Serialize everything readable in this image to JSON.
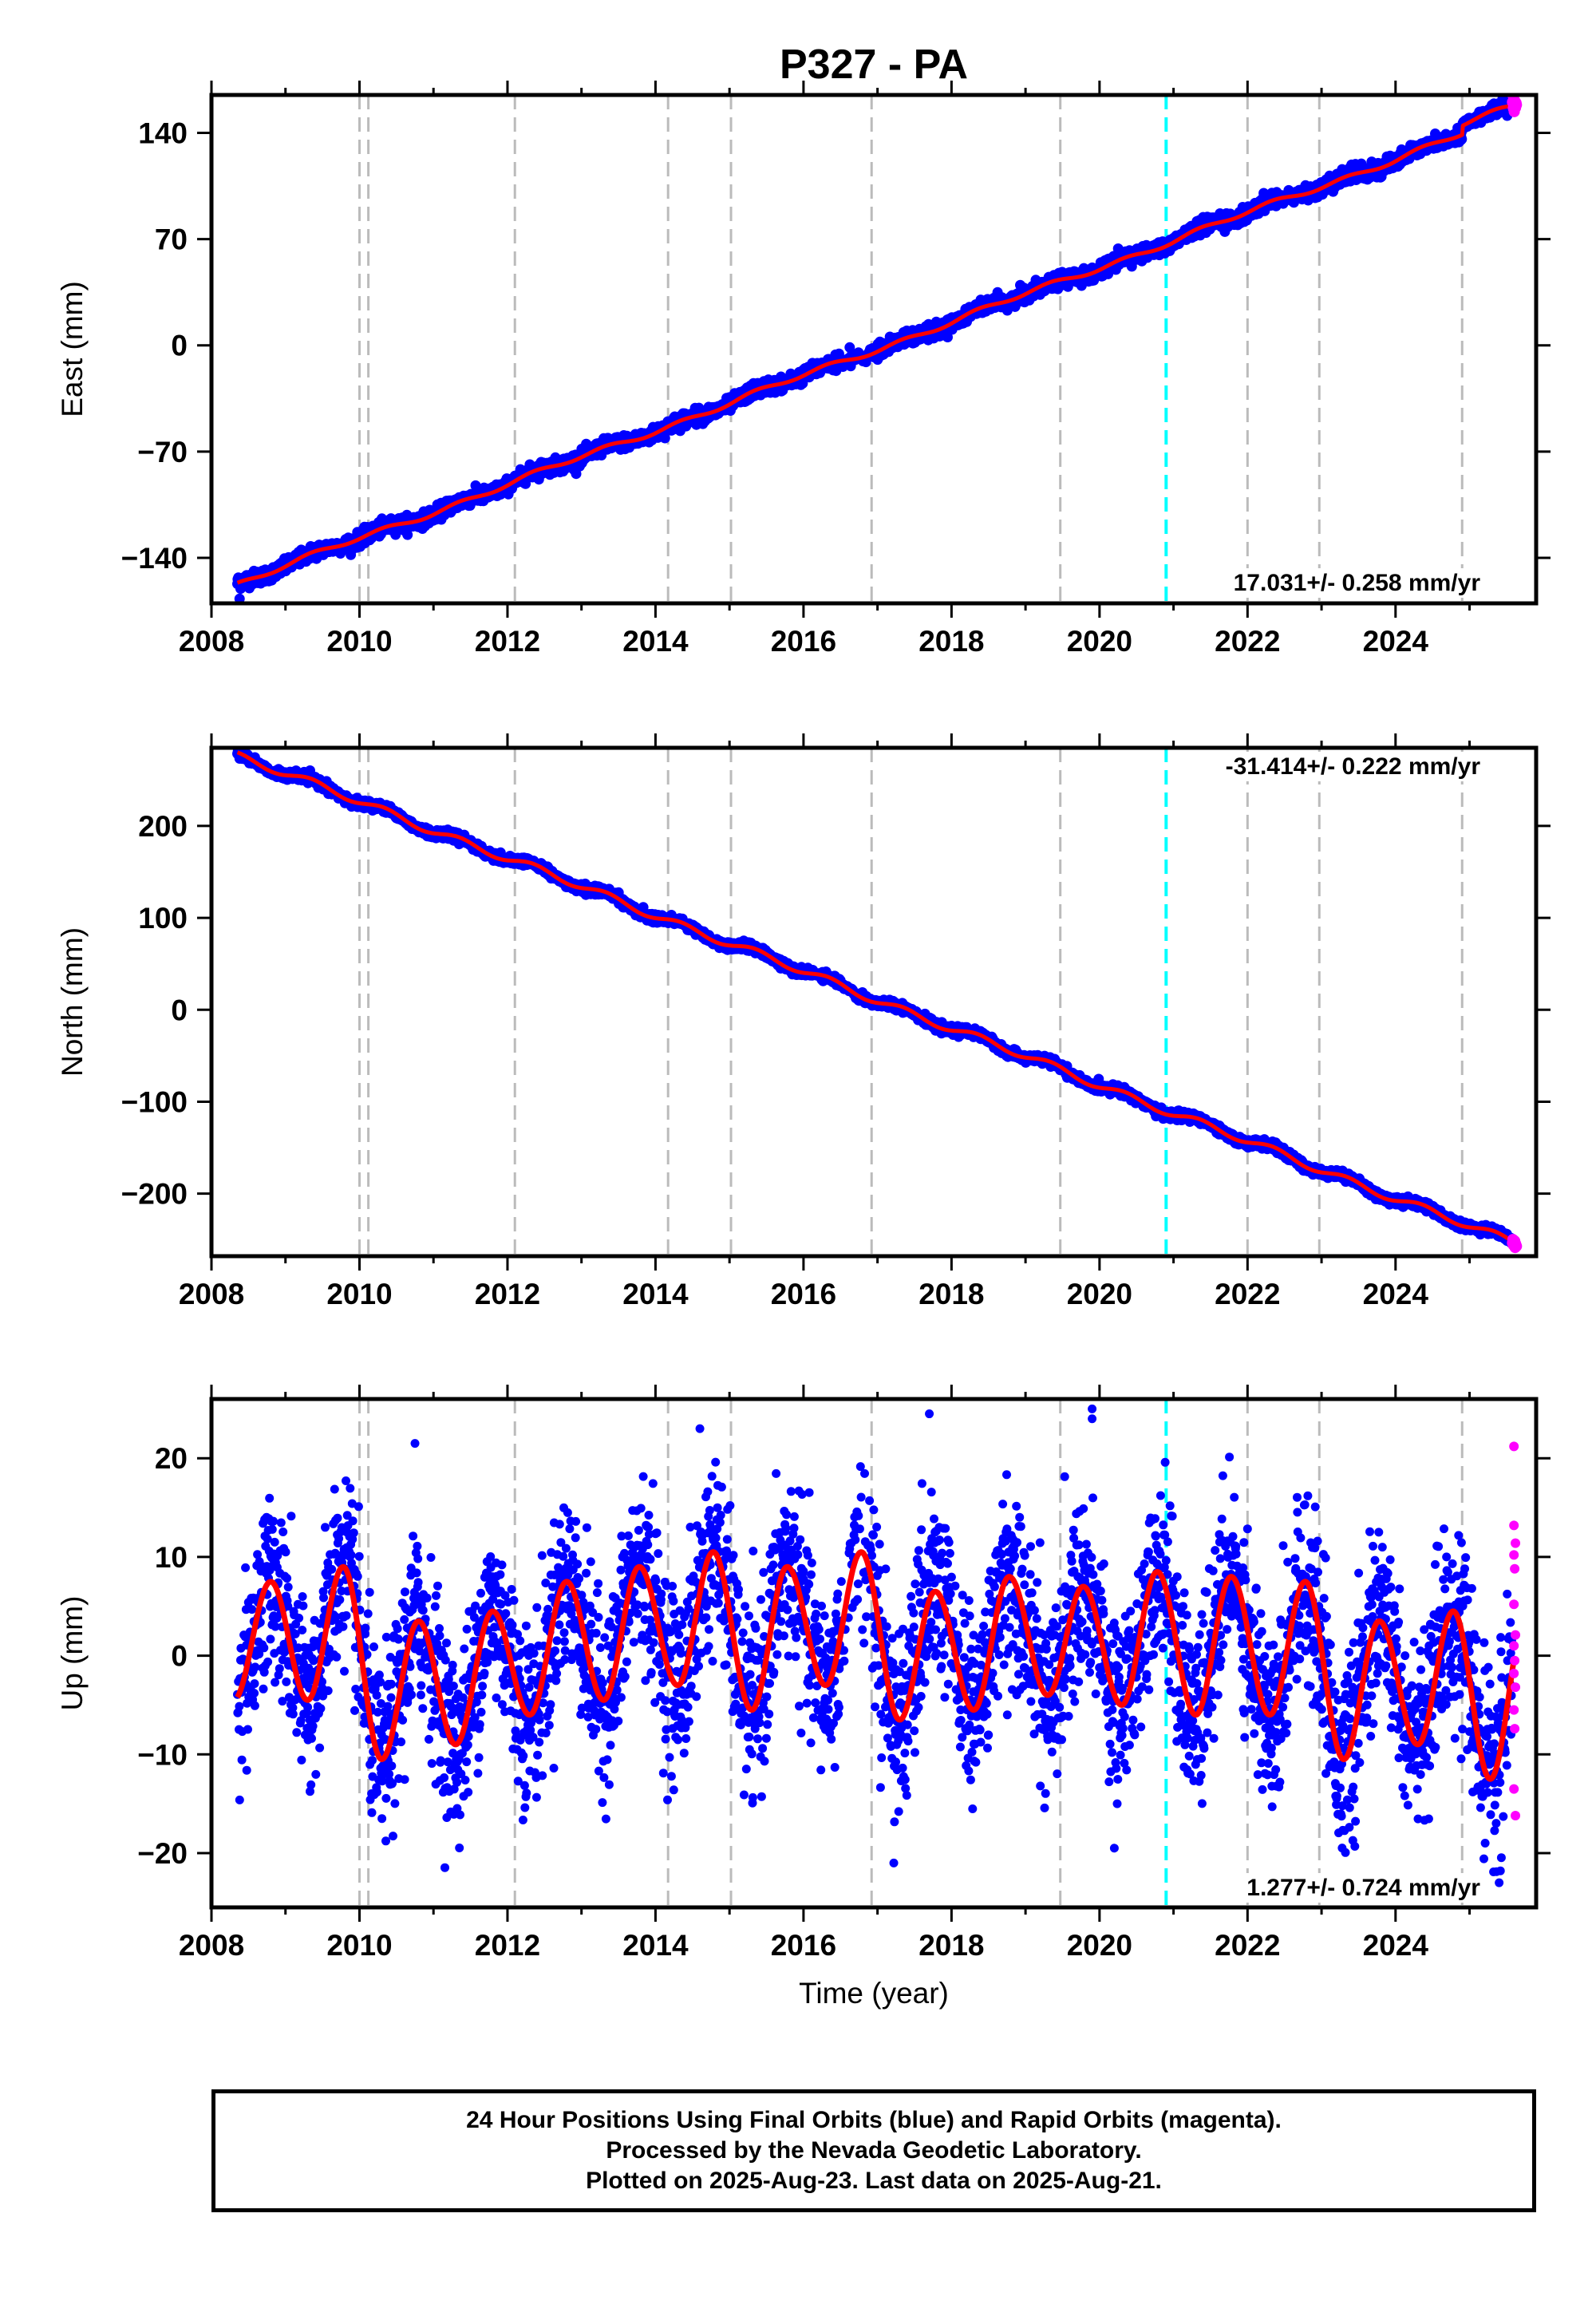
{
  "title": "P327 - PA",
  "colors": {
    "final_points": "#0000ff",
    "rapid_points": "#ff00ff",
    "model_line": "#ff0000",
    "equipment_change_lines": "#bbbbbb",
    "highlight_line": "#00ffff"
  },
  "chart_data": [
    {
      "type": "scatter",
      "panel": "east",
      "ylabel": "East (mm)",
      "xlim": [
        2008.0,
        2025.9
      ],
      "ylim": [
        -170,
        165
      ],
      "yticks": [
        -140,
        -70,
        0,
        70,
        140
      ],
      "xticks": [
        2008,
        2010,
        2012,
        2014,
        2016,
        2018,
        2020,
        2022,
        2024
      ],
      "rate_text": "17.031+/- 0.258 mm/yr",
      "rate_mm_per_yr": 17.031,
      "rate_uncertainty": 0.258,
      "data_start_year": 2008.35,
      "data_end_year": 2025.63,
      "start_value": -157,
      "end_value": 158,
      "offset_events": [
        {
          "year": 2024.9,
          "offset_mm": 6
        }
      ],
      "seasonal_amplitude_mm": 1.5,
      "scatter_sd_mm": 2.3,
      "grid": false,
      "vertical_lines_year": [
        2010.0,
        2010.12,
        2012.1,
        2014.17,
        2015.02,
        2016.92,
        2019.47,
        2022.0,
        2022.97,
        2024.9
      ],
      "highlight_line_year": 2020.9
    },
    {
      "type": "scatter",
      "panel": "north",
      "ylabel": "North (mm)",
      "xlim": [
        2008.0,
        2025.9
      ],
      "ylim": [
        -268,
        285
      ],
      "yticks": [
        -200,
        -100,
        0,
        100,
        200
      ],
      "xticks": [
        2008,
        2010,
        2012,
        2014,
        2016,
        2018,
        2020,
        2022,
        2024
      ],
      "rate_text": "-31.414+/- 0.222 mm/yr",
      "rate_mm_per_yr": -31.414,
      "rate_uncertainty": 0.222,
      "data_start_year": 2008.35,
      "data_end_year": 2025.63,
      "start_value": 277,
      "end_value": -255,
      "offset_events": [],
      "seasonal_amplitude_mm": 4,
      "scatter_sd_mm": 2.2,
      "grid": false,
      "vertical_lines_year": [
        2010.0,
        2010.12,
        2012.1,
        2014.17,
        2015.02,
        2016.92,
        2019.47,
        2022.0,
        2022.97,
        2024.9
      ],
      "highlight_line_year": 2020.9
    },
    {
      "type": "scatter",
      "panel": "up",
      "ylabel": "Up (mm)",
      "xlabel": "Time (year)",
      "xlim": [
        2008.0,
        2025.9
      ],
      "ylim": [
        -25.5,
        26
      ],
      "yticks": [
        -20,
        -10,
        0,
        10,
        20
      ],
      "xticks": [
        2008,
        2010,
        2012,
        2014,
        2016,
        2018,
        2020,
        2022,
        2024
      ],
      "rate_text": "1.277+/- 0.724 mm/yr",
      "rate_mm_per_yr": 1.277,
      "rate_uncertainty": 0.724,
      "data_start_year": 2008.35,
      "data_end_year": 2025.63,
      "seasonal_model_peaks": [
        {
          "year": 2008.8,
          "value": 7.5
        },
        {
          "year": 2009.3,
          "value": -4.5
        },
        {
          "year": 2009.78,
          "value": 9
        },
        {
          "year": 2010.3,
          "value": -10.5
        },
        {
          "year": 2010.8,
          "value": 3.5
        },
        {
          "year": 2011.3,
          "value": -9
        },
        {
          "year": 2011.8,
          "value": 4.5
        },
        {
          "year": 2012.3,
          "value": -6
        },
        {
          "year": 2012.8,
          "value": 7.5
        },
        {
          "year": 2013.3,
          "value": -4.5
        },
        {
          "year": 2013.78,
          "value": 9
        },
        {
          "year": 2014.3,
          "value": -3
        },
        {
          "year": 2014.78,
          "value": 10.5
        },
        {
          "year": 2015.3,
          "value": -5.5
        },
        {
          "year": 2015.78,
          "value": 9
        },
        {
          "year": 2016.3,
          "value": -3
        },
        {
          "year": 2016.78,
          "value": 10.5
        },
        {
          "year": 2017.3,
          "value": -6.5
        },
        {
          "year": 2017.78,
          "value": 6.5
        },
        {
          "year": 2018.3,
          "value": -5.5
        },
        {
          "year": 2018.78,
          "value": 8
        },
        {
          "year": 2019.3,
          "value": -4
        },
        {
          "year": 2019.78,
          "value": 7
        },
        {
          "year": 2020.3,
          "value": -5
        },
        {
          "year": 2020.78,
          "value": 8.5
        },
        {
          "year": 2021.3,
          "value": -6
        },
        {
          "year": 2021.78,
          "value": 8
        },
        {
          "year": 2022.3,
          "value": -6
        },
        {
          "year": 2022.78,
          "value": 7.5
        },
        {
          "year": 2023.3,
          "value": -10.5
        },
        {
          "year": 2023.78,
          "value": 3.5
        },
        {
          "year": 2024.3,
          "value": -9
        },
        {
          "year": 2024.78,
          "value": 4.5
        },
        {
          "year": 2025.28,
          "value": -12.5
        }
      ],
      "scatter_sd_mm": 4.5,
      "rapid_points": [
        {
          "year": 2025.6,
          "value": 21.2
        },
        {
          "year": 2025.6,
          "value": 13.2
        },
        {
          "year": 2025.62,
          "value": 11.4
        },
        {
          "year": 2025.6,
          "value": 10.2
        },
        {
          "year": 2025.61,
          "value": 8.8
        },
        {
          "year": 2025.6,
          "value": 5.2
        },
        {
          "year": 2025.62,
          "value": 2.1
        },
        {
          "year": 2025.6,
          "value": 1.0
        },
        {
          "year": 2025.61,
          "value": -0.5
        },
        {
          "year": 2025.6,
          "value": -1.8
        },
        {
          "year": 2025.62,
          "value": -3.2
        },
        {
          "year": 2025.6,
          "value": -5.5
        },
        {
          "year": 2025.61,
          "value": -7.4
        },
        {
          "year": 2025.6,
          "value": -13.5
        },
        {
          "year": 2025.62,
          "value": -16.2
        }
      ],
      "outliers": [
        {
          "year": 2010.75,
          "value": 21.5
        },
        {
          "year": 2014.6,
          "value": 23
        },
        {
          "year": 2017.7,
          "value": 24.5
        },
        {
          "year": 2019.9,
          "value": 25
        },
        {
          "year": 2019.9,
          "value": 24
        },
        {
          "year": 2020.2,
          "value": -19.5
        },
        {
          "year": 2024.2,
          "value": -24.5
        },
        {
          "year": 2025.4,
          "value": -23
        },
        {
          "year": 2017.22,
          "value": -21
        }
      ],
      "grid": false,
      "vertical_lines_year": [
        2010.0,
        2010.12,
        2012.1,
        2014.17,
        2015.02,
        2016.92,
        2019.47,
        2022.0,
        2022.97,
        2024.9
      ],
      "highlight_line_year": 2020.9
    }
  ],
  "caption": {
    "line1": "24 Hour Positions Using Final Orbits (blue) and Rapid Orbits (magenta).",
    "line2": "Processed by the Nevada Geodetic Laboratory.",
    "line3": "Plotted on 2025-Aug-23. Last data on 2025-Aug-21."
  }
}
